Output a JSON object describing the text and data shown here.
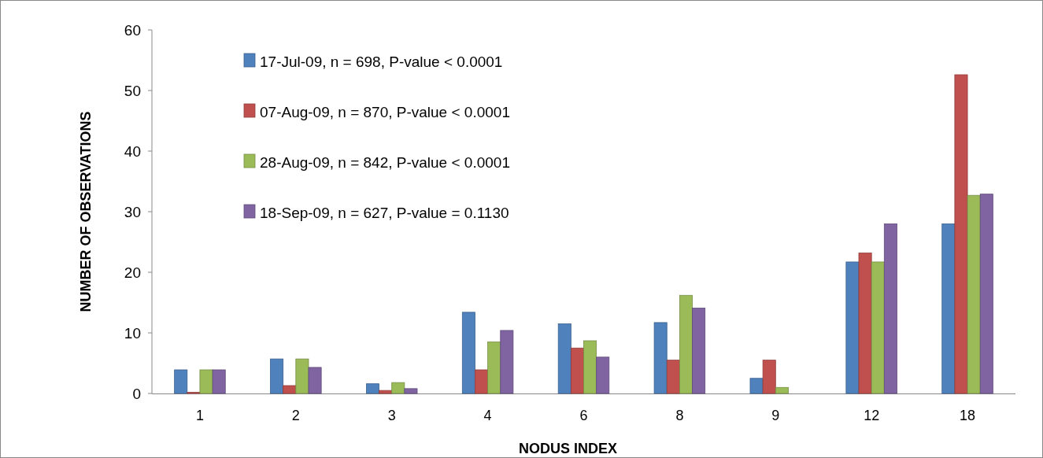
{
  "chart_data": {
    "type": "bar",
    "xlabel": "NODUS INDEX",
    "ylabel": "NUMBER OF OBSERVATIONS",
    "categories": [
      "1",
      "2",
      "3",
      "4",
      "6",
      "8",
      "9",
      "12",
      "18"
    ],
    "series": [
      {
        "name": "17-Jul-09, n = 698, P-value < 0.0001",
        "color": "#4f81bd",
        "values": [
          3.9,
          5.7,
          1.6,
          13.4,
          11.5,
          11.7,
          2.5,
          21.7,
          28
        ]
      },
      {
        "name": "07-Aug-09, n = 870, P-value < 0.0001",
        "color": "#c0504d",
        "values": [
          0.2,
          1.3,
          0.5,
          3.9,
          7.5,
          5.5,
          5.5,
          23.2,
          52.6
        ]
      },
      {
        "name": "28-Aug-09, n = 842, P-value < 0.0001",
        "color": "#9bbb59",
        "values": [
          3.9,
          5.7,
          1.8,
          8.5,
          8.7,
          16.2,
          1,
          21.7,
          32.7
        ]
      },
      {
        "name": "18-Sep-09, n = 627, P-value = 0.1130",
        "color": "#8064a2",
        "values": [
          3.9,
          4.3,
          0.8,
          10.4,
          6,
          14.1,
          0,
          28,
          32.9
        ]
      }
    ],
    "ylim": [
      0,
      60
    ],
    "yticks": [
      0,
      10,
      20,
      30,
      40,
      50,
      60
    ],
    "grid": false,
    "legend": "top left"
  }
}
